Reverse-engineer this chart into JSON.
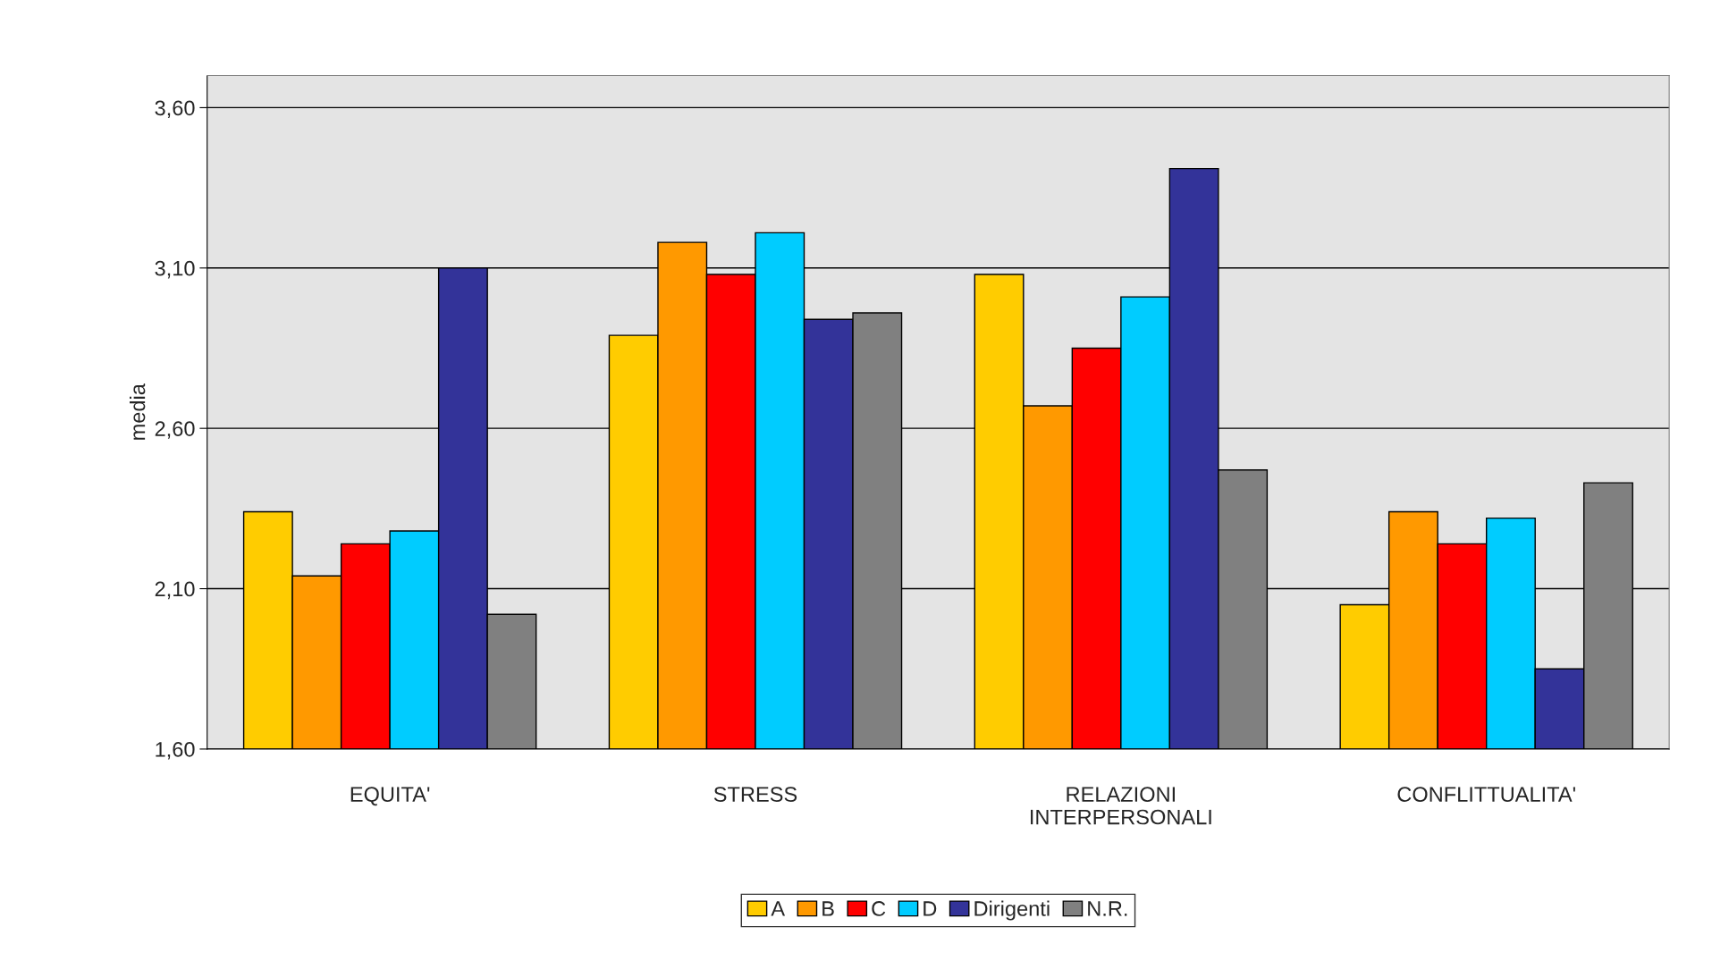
{
  "chart_data": {
    "type": "bar",
    "ylabel": "media",
    "categories": [
      "EQUITA'",
      "STRESS",
      "RELAZIONI\nINTERPERSONALI",
      "CONFLITTUALITA'"
    ],
    "series": [
      {
        "name": "A",
        "color": "#ffcc00",
        "values": [
          2.34,
          2.89,
          3.08,
          2.05
        ]
      },
      {
        "name": "B",
        "color": "#ff9900",
        "values": [
          2.14,
          3.18,
          2.67,
          2.34
        ]
      },
      {
        "name": "C",
        "color": "#ff0000",
        "values": [
          2.24,
          3.08,
          2.85,
          2.24
        ]
      },
      {
        "name": "D",
        "color": "#00ccff",
        "values": [
          2.28,
          3.21,
          3.01,
          2.32
        ]
      },
      {
        "name": "Dirigenti",
        "color": "#333399",
        "values": [
          3.1,
          2.94,
          3.41,
          1.85
        ]
      },
      {
        "name": "N.R.",
        "color": "#808080",
        "values": [
          2.02,
          2.96,
          2.47,
          2.43
        ]
      }
    ],
    "ylim": [
      1.6,
      3.7
    ],
    "yticks": [
      {
        "value": 1.6,
        "label": "1,60"
      },
      {
        "value": 2.1,
        "label": "2,10"
      },
      {
        "value": 2.6,
        "label": "2,60"
      },
      {
        "value": 3.1,
        "label": "3,10"
      },
      {
        "value": 3.6,
        "label": "3,60"
      }
    ],
    "grid": "y",
    "legend": "bottom"
  }
}
